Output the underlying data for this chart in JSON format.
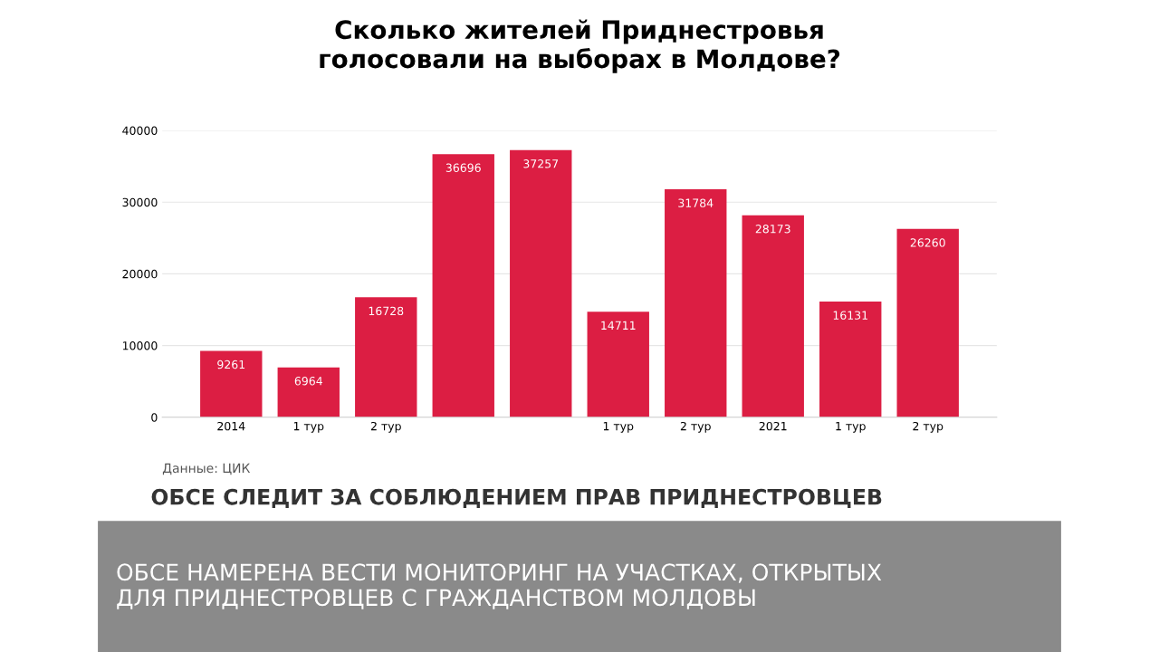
{
  "chart_data": {
    "type": "bar",
    "title": "Сколько жителей Приднестровья\nголосовали на выборах в Молдове?",
    "categories": [
      "2014",
      "1 тур",
      "2 тур",
      null,
      null,
      "1 тур",
      "2 тур",
      "2021",
      "1 тур",
      "2 тур"
    ],
    "values": [
      9261,
      6964,
      16728,
      36696,
      37257,
      14711,
      31784,
      28173,
      16131,
      26260
    ],
    "color": "#dc1e43",
    "data_labels": true,
    "grid": "y",
    "ylim": [
      0,
      40000
    ],
    "yticks": [
      0,
      10000,
      20000,
      30000,
      40000
    ],
    "annotations": [
      "Данные: ЦИК",
      "ОБСЕ СЛЕДИТ ЗА СОБЛЮДЕНИЕМ ПРАВ ПРИДНЕСТРОВЦЕВ",
      "ОБСЕ НАМЕРЕНА ВЕСТИ МОНИТОРИНГ НА УЧАСТКАХ, ОТКРЫТЫХ\nДЛЯ ПРИДНЕСТРОВЦЕВ С ГРАЖДАНСТВОМ МОЛДОВЫ"
    ]
  }
}
